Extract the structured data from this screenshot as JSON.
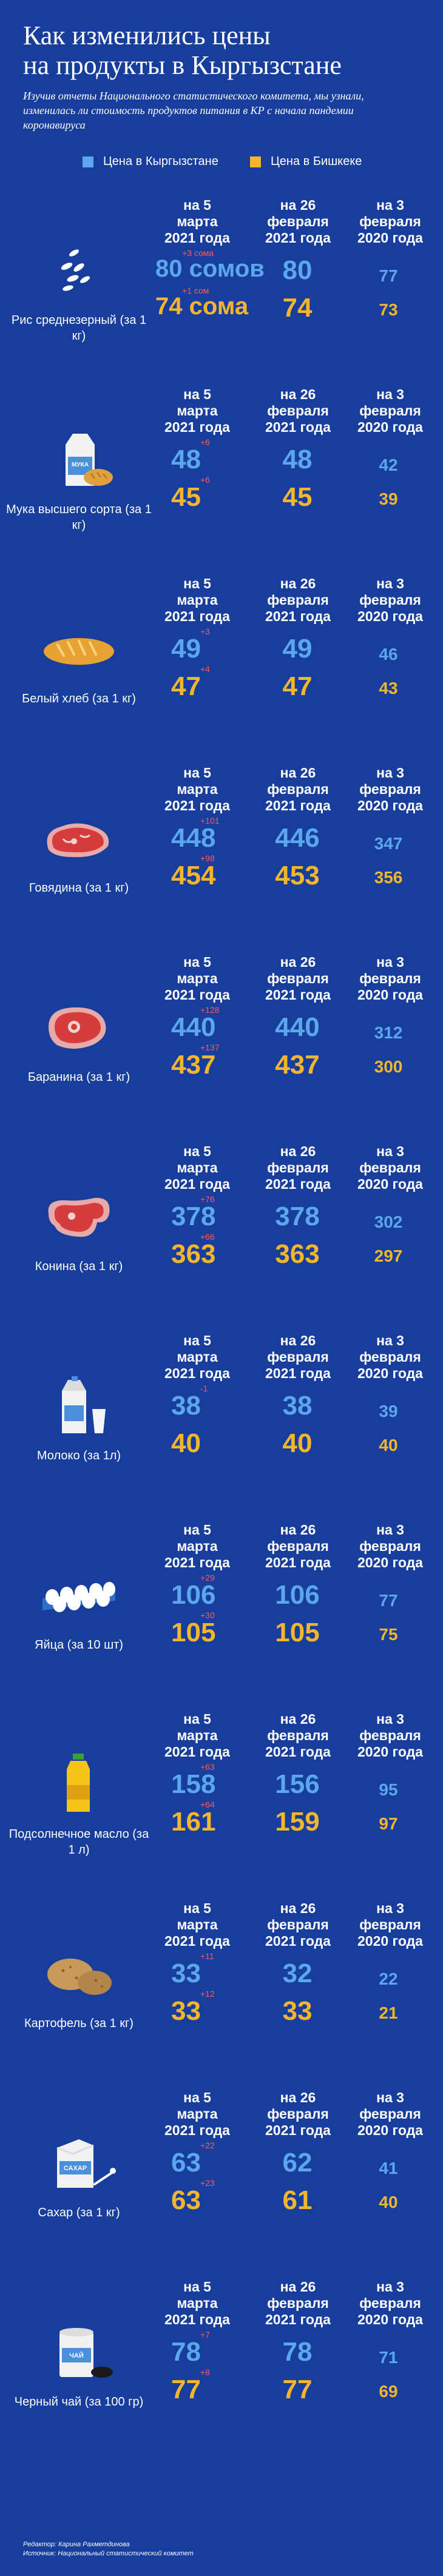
{
  "header": {
    "title_line1": "Как изменились цены",
    "title_line2": "на продукты в Кыргызстане",
    "subtitle": "Изучив отчеты Национального статистического комитета, мы узнали, изменилась ли стоимость продуктов питания в КР с начала пандемии коронавируса"
  },
  "legend": {
    "kg_label": "Цена в Кыргызстане",
    "bk_label": "Цена в Бишкеке",
    "kg_color": "#5ba6ec",
    "bk_color": "#f3b52c"
  },
  "columns": {
    "col1": [
      "на 5",
      "марта",
      "2021 года"
    ],
    "col2": [
      "на 26",
      "февраля",
      "2021 года"
    ],
    "col3": [
      "на 3",
      "февраля",
      "2020 года"
    ]
  },
  "items": [
    {
      "icon": "rice-icon",
      "label": "Рис среднезерный (за 1 кг)",
      "cur_kg": "80 сомов",
      "cur_bk": "74 сома",
      "d_kg": "+3 сома",
      "d_bk": "+1 сом",
      "mid_kg": "80",
      "mid_bk": "74",
      "old_kg": "77",
      "old_bk": "73"
    },
    {
      "icon": "flour-icon",
      "label": "Мука высшего сорта (за 1 кг)",
      "cur_kg": "48",
      "cur_bk": "45",
      "d_kg": "+6",
      "d_bk": "+6",
      "mid_kg": "48",
      "mid_bk": "45",
      "old_kg": "42",
      "old_bk": "39"
    },
    {
      "icon": "bread-icon",
      "label": "Белый хлеб (за 1 кг)",
      "cur_kg": "49",
      "cur_bk": "47",
      "d_kg": "+3",
      "d_bk": "+4",
      "mid_kg": "49",
      "mid_bk": "47",
      "old_kg": "46",
      "old_bk": "43"
    },
    {
      "icon": "beef-icon",
      "label": "Говядина (за 1 кг)",
      "cur_kg": "448",
      "cur_bk": "454",
      "d_kg": "+101",
      "d_bk": "+98",
      "mid_kg": "446",
      "mid_bk": "453",
      "old_kg": "347",
      "old_bk": "356"
    },
    {
      "icon": "mutton-icon",
      "label": "Баранина (за 1 кг)",
      "cur_kg": "440",
      "cur_bk": "437",
      "d_kg": "+128",
      "d_bk": "+137",
      "mid_kg": "440",
      "mid_bk": "437",
      "old_kg": "312",
      "old_bk": "300"
    },
    {
      "icon": "horsemeat-icon",
      "label": "Конина (за 1 кг)",
      "cur_kg": "378",
      "cur_bk": "363",
      "d_kg": "+76",
      "d_bk": "+66",
      "mid_kg": "378",
      "mid_bk": "363",
      "old_kg": "302",
      "old_bk": "297"
    },
    {
      "icon": "milk-icon",
      "label": "Молоко (за 1л)",
      "cur_kg": "38",
      "cur_bk": "40",
      "d_kg": "-1",
      "d_bk": "",
      "mid_kg": "38",
      "mid_bk": "40",
      "old_kg": "39",
      "old_bk": "40"
    },
    {
      "icon": "eggs-icon",
      "label": "Яйца (за 10 шт)",
      "cur_kg": "106",
      "cur_bk": "105",
      "d_kg": "+29",
      "d_bk": "+30",
      "mid_kg": "106",
      "mid_bk": "105",
      "old_kg": "77",
      "old_bk": "75"
    },
    {
      "icon": "oil-icon",
      "label": "Подсолнечное масло (за 1 л)",
      "cur_kg": "158",
      "cur_bk": "161",
      "d_kg": "+63",
      "d_bk": "+64",
      "mid_kg": "156",
      "mid_bk": "159",
      "old_kg": "95",
      "old_bk": "97"
    },
    {
      "icon": "potato-icon",
      "label": "Картофель (за 1 кг)",
      "cur_kg": "33",
      "cur_bk": "33",
      "d_kg": "+11",
      "d_bk": "+12",
      "mid_kg": "32",
      "mid_bk": "33",
      "old_kg": "22",
      "old_bk": "21"
    },
    {
      "icon": "sugar-icon",
      "label": "Сахар (за 1 кг)",
      "cur_kg": "63",
      "cur_bk": "63",
      "d_kg": "+22",
      "d_bk": "+23",
      "mid_kg": "62",
      "mid_bk": "61",
      "old_kg": "41",
      "old_bk": "40"
    },
    {
      "icon": "tea-icon",
      "label": "Черный чай (за 100 гр)",
      "cur_kg": "78",
      "cur_bk": "77",
      "d_kg": "+7",
      "d_bk": "+8",
      "mid_kg": "78",
      "mid_bk": "77",
      "old_kg": "71",
      "old_bk": "69"
    }
  ],
  "footer": {
    "line1": "Редактор: Карина Рахметдинова",
    "line2": "Источник: Национальный статистический комитет"
  }
}
